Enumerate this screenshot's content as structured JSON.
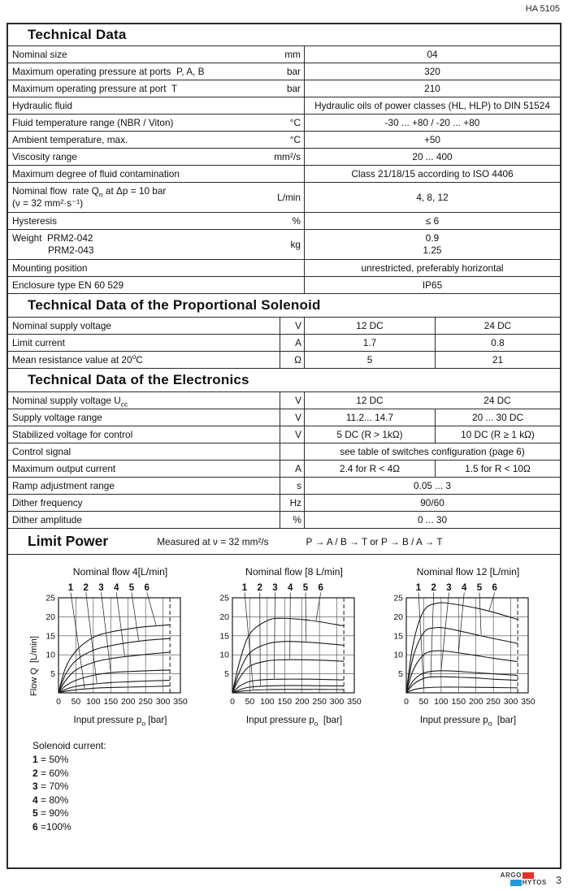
{
  "header": {
    "doc_code": "HA 5105"
  },
  "sections": {
    "technical_data": {
      "title": "Technical Data",
      "rows": [
        {
          "label": "Nominal size",
          "unit": "mm",
          "value": "04"
        },
        {
          "label": "Maximum operating pressure at ports  P, A, B",
          "unit": "bar",
          "value": "320"
        },
        {
          "label": "Maximum operating pressure at port  T",
          "unit": "bar",
          "value": "210"
        },
        {
          "label": "Hydraulic fluid",
          "unit": "",
          "value": "Hydraulic oils of power classes (HL, HLP) to DIN 51524"
        },
        {
          "label": "Fluid temperature range (NBR / Viton)",
          "unit": "°C",
          "value": "-30 ... +80 / -20 ... +80"
        },
        {
          "label": "Ambient temperature, max.",
          "unit": "°C",
          "value": "+50"
        },
        {
          "label": "Viscosity range",
          "unit": "mm²/s",
          "value": "20 ... 400"
        },
        {
          "label": "Maximum degree of fluid contamination",
          "unit": "",
          "value": "Class 21/18/15 according to ISO 4406"
        },
        {
          "label_pre": "Nominal flow  rate Q",
          "label_sub": "n",
          "label_post": " at Δp = 10 bar",
          "label_line2": "(ν = 32 mm²·s⁻¹)",
          "unit": "L/min",
          "value": "4, 8, 12"
        },
        {
          "label": "Hysteresis",
          "unit": "%",
          "value": "≤ 6"
        },
        {
          "label": "Weight  PRM2-042",
          "label_line2": "PRM2-043",
          "unit": "kg",
          "value": "0.9",
          "value2": "1.25"
        },
        {
          "label": "Mounting position",
          "unit": "",
          "value": "unrestricted, preferably horizontal"
        },
        {
          "label": "Enclosure type EN 60 529",
          "unit": "",
          "value": "IP65"
        }
      ]
    },
    "solenoid": {
      "title": "Technical Data of the Proportional Solenoid",
      "rows": [
        {
          "label": "Nominal supply voltage",
          "unit": "V",
          "v1": "12 DC",
          "v2": "24 DC"
        },
        {
          "label": "Limit current",
          "unit": "A",
          "v1": "1.7",
          "v2": "0.8"
        },
        {
          "label_pre": "Mean resistance value at 20",
          "label_sup": "o",
          "label_post": "C",
          "unit": "Ω",
          "v1": "5",
          "v2": "21"
        }
      ]
    },
    "electronics": {
      "title": "Technical Data of the Electronics",
      "rows": [
        {
          "label_pre": "Nominal supply voltage U",
          "label_sub": "cc",
          "unit": "V",
          "v1": "12 DC",
          "v2": "24 DC"
        },
        {
          "label": "Supply voltage range",
          "unit": "V",
          "v1": "11.2... 14.7",
          "v2": "20 ... 30 DC"
        },
        {
          "label": "Stabilized voltage for control",
          "unit": "V",
          "v1": "5 DC (R > 1kΩ)",
          "v2": "10 DC (R ≥ 1 kΩ)"
        },
        {
          "label": "Control signal",
          "unit": "",
          "value": "see table of switches configuration (page 6)"
        },
        {
          "label": "Maximum output current",
          "unit": "A",
          "v1": "2.4 for R < 4Ω",
          "v2": "1.5 for R < 10Ω"
        },
        {
          "label": "Ramp adjustment range",
          "unit": "s",
          "value": "0.05 ... 3"
        },
        {
          "label": "Dither frequency",
          "unit": "Hz",
          "value": "90/60"
        },
        {
          "label": "Dither amplitude",
          "unit": "%",
          "value": "0 ... 30"
        }
      ]
    },
    "limit_power": {
      "title": "Limit Power",
      "note1": "Measured at ν = 32 mm²/s",
      "note2": "P → A / B → T or P → B / A → T"
    }
  },
  "legend": {
    "title": "Solenoid current:",
    "items": [
      {
        "n": "1",
        "rest": " = 50%"
      },
      {
        "n": "2",
        "rest": " = 60%"
      },
      {
        "n": "3",
        "rest": " = 70%"
      },
      {
        "n": "4",
        "rest": " = 80%"
      },
      {
        "n": "5",
        "rest": " = 90%"
      },
      {
        "n": "6",
        "rest": " =100%"
      }
    ]
  },
  "chart_data": [
    {
      "type": "line",
      "title": "Nominal flow 4[L/min]",
      "ylabel": "Flow Q  [L/min]",
      "xlabel_pre": "Input pressure p",
      "xlabel_sub": "o",
      "xlabel_post": " [bar]",
      "xlim": [
        0,
        350
      ],
      "ylim": [
        0,
        25
      ],
      "xticks": [
        0,
        50,
        100,
        150,
        200,
        250,
        300,
        350
      ],
      "yticks": [
        5,
        10,
        15,
        20,
        25
      ],
      "x_step": 50,
      "y_step": 5,
      "grid": true,
      "dashed_x": 320,
      "curve_labels": [
        "1",
        "2",
        "3",
        "4",
        "5",
        "6"
      ],
      "callout_x": [
        75,
        110,
        150,
        190,
        230,
        280
      ],
      "series": [
        {
          "name": "1",
          "points": [
            [
              0,
              0
            ],
            [
              20,
              0.4
            ],
            [
              50,
              0.8
            ],
            [
              100,
              1.2
            ],
            [
              150,
              1.4
            ],
            [
              200,
              1.5
            ],
            [
              250,
              1.6
            ],
            [
              320,
              1.8
            ]
          ]
        },
        {
          "name": "2",
          "points": [
            [
              0,
              0
            ],
            [
              20,
              0.9
            ],
            [
              50,
              1.7
            ],
            [
              100,
              2.3
            ],
            [
              150,
              2.7
            ],
            [
              200,
              2.9
            ],
            [
              250,
              3.1
            ],
            [
              320,
              3.3
            ]
          ]
        },
        {
          "name": "3",
          "points": [
            [
              0,
              0
            ],
            [
              20,
              1.8
            ],
            [
              50,
              3.3
            ],
            [
              100,
              4.6
            ],
            [
              150,
              5.3
            ],
            [
              200,
              5.6
            ],
            [
              250,
              5.8
            ],
            [
              320,
              6.0
            ]
          ]
        },
        {
          "name": "4",
          "points": [
            [
              0,
              0
            ],
            [
              20,
              3.2
            ],
            [
              50,
              6.0
            ],
            [
              100,
              8.0
            ],
            [
              150,
              9.0
            ],
            [
              200,
              9.6
            ],
            [
              250,
              10.1
            ],
            [
              320,
              10.7
            ]
          ]
        },
        {
          "name": "5",
          "points": [
            [
              0,
              0
            ],
            [
              20,
              4.8
            ],
            [
              50,
              8.5
            ],
            [
              100,
              11.2
            ],
            [
              150,
              12.4
            ],
            [
              200,
              13.2
            ],
            [
              250,
              13.8
            ],
            [
              320,
              14.3
            ]
          ]
        },
        {
          "name": "6",
          "points": [
            [
              0,
              0
            ],
            [
              20,
              6.5
            ],
            [
              50,
              11.0
            ],
            [
              100,
              14.6
            ],
            [
              150,
              16.0
            ],
            [
              200,
              16.8
            ],
            [
              250,
              17.4
            ],
            [
              320,
              17.9
            ]
          ]
        }
      ]
    },
    {
      "type": "line",
      "title": "Nominal flow [8 L/min]",
      "xlabel_pre": "Input pressure p",
      "xlabel_sub": "o",
      "xlabel_post": "  [bar]",
      "xlim": [
        0,
        350
      ],
      "ylim": [
        0,
        25
      ],
      "xticks": [
        0,
        50,
        100,
        150,
        200,
        250,
        300,
        350
      ],
      "yticks": [
        5,
        10,
        15,
        20,
        25
      ],
      "x_step": 50,
      "y_step": 5,
      "grid": true,
      "dashed_x": 320,
      "curve_labels": [
        "1",
        "2",
        "3",
        "4",
        "5",
        "6"
      ],
      "callout_x": [
        60,
        80,
        120,
        165,
        212,
        240
      ],
      "series": [
        {
          "name": "1",
          "points": [
            [
              0,
              0
            ],
            [
              20,
              0.35
            ],
            [
              50,
              0.65
            ],
            [
              100,
              0.85
            ],
            [
              150,
              0.9
            ],
            [
              200,
              0.9
            ],
            [
              250,
              0.9
            ],
            [
              320,
              0.85
            ]
          ]
        },
        {
          "name": "2",
          "points": [
            [
              0,
              0
            ],
            [
              20,
              0.8
            ],
            [
              50,
              1.5
            ],
            [
              100,
              1.8
            ],
            [
              150,
              1.9
            ],
            [
              200,
              1.9
            ],
            [
              250,
              1.85
            ],
            [
              320,
              1.8
            ]
          ]
        },
        {
          "name": "3",
          "points": [
            [
              0,
              0
            ],
            [
              20,
              1.7
            ],
            [
              50,
              3.0
            ],
            [
              100,
              3.5
            ],
            [
              150,
              3.6
            ],
            [
              200,
              3.6
            ],
            [
              250,
              3.55
            ],
            [
              320,
              3.4
            ]
          ]
        },
        {
          "name": "4",
          "points": [
            [
              0,
              0
            ],
            [
              20,
              3.8
            ],
            [
              50,
              7.0
            ],
            [
              100,
              8.4
            ],
            [
              150,
              8.7
            ],
            [
              200,
              8.7
            ],
            [
              250,
              8.6
            ],
            [
              320,
              8.3
            ]
          ]
        },
        {
          "name": "5",
          "points": [
            [
              0,
              0
            ],
            [
              20,
              5.5
            ],
            [
              50,
              10.5
            ],
            [
              100,
              12.9
            ],
            [
              150,
              13.5
            ],
            [
              200,
              13.4
            ],
            [
              250,
              13.1
            ],
            [
              320,
              12.5
            ]
          ]
        },
        {
          "name": "6",
          "points": [
            [
              0,
              0
            ],
            [
              20,
              8.0
            ],
            [
              50,
              15.5
            ],
            [
              100,
              19.0
            ],
            [
              140,
              19.6
            ],
            [
              200,
              19.3
            ],
            [
              250,
              18.7
            ],
            [
              320,
              17.6
            ]
          ]
        }
      ]
    },
    {
      "type": "line",
      "title": "Nominal flow 12 [L/min]",
      "xlabel_pre": "Input pressure p",
      "xlabel_sub": "o",
      "xlabel_post": "  [bar]",
      "xlim": [
        0,
        350
      ],
      "ylim": [
        0,
        25
      ],
      "xticks": [
        0,
        50,
        100,
        150,
        200,
        250,
        300,
        350
      ],
      "yticks": [
        5,
        10,
        15,
        20,
        25
      ],
      "x_step": 50,
      "y_step": 5,
      "grid": true,
      "dashed_x": 320,
      "curve_labels": [
        "1",
        "2",
        "3",
        "4",
        "5",
        "6"
      ],
      "callout_x": [
        50,
        70,
        100,
        150,
        215,
        238
      ],
      "series": [
        {
          "name": "1",
          "points": [
            [
              0,
              0
            ],
            [
              20,
              0.8
            ],
            [
              50,
              1.3
            ],
            [
              100,
              1.5
            ],
            [
              150,
              1.5
            ],
            [
              200,
              1.45
            ],
            [
              250,
              1.4
            ],
            [
              320,
              1.3
            ]
          ]
        },
        {
          "name": "2",
          "points": [
            [
              0,
              0
            ],
            [
              20,
              2.2
            ],
            [
              50,
              3.8
            ],
            [
              80,
              4.2
            ],
            [
              120,
              4.2
            ],
            [
              200,
              3.9
            ],
            [
              250,
              3.6
            ],
            [
              320,
              3.3
            ]
          ]
        },
        {
          "name": "3",
          "points": [
            [
              0,
              0
            ],
            [
              20,
              3.2
            ],
            [
              50,
              5.2
            ],
            [
              90,
              5.8
            ],
            [
              140,
              5.7
            ],
            [
              200,
              5.3
            ],
            [
              250,
              5.0
            ],
            [
              320,
              4.6
            ]
          ]
        },
        {
          "name": "4",
          "points": [
            [
              0,
              0
            ],
            [
              20,
              6.0
            ],
            [
              50,
              10.0
            ],
            [
              80,
              11.0
            ],
            [
              120,
              10.9
            ],
            [
              200,
              9.8
            ],
            [
              250,
              9.1
            ],
            [
              320,
              8.2
            ]
          ]
        },
        {
          "name": "5",
          "points": [
            [
              0,
              0
            ],
            [
              20,
              9.5
            ],
            [
              50,
              15.8
            ],
            [
              80,
              17.1
            ],
            [
              120,
              16.9
            ],
            [
              200,
              15.3
            ],
            [
              250,
              14.3
            ],
            [
              320,
              13.0
            ]
          ]
        },
        {
          "name": "6",
          "points": [
            [
              0,
              0
            ],
            [
              20,
              13.0
            ],
            [
              50,
              21.5
            ],
            [
              90,
              23.6
            ],
            [
              140,
              23.3
            ],
            [
              200,
              22.3
            ],
            [
              250,
              21.2
            ],
            [
              320,
              19.3
            ]
          ]
        }
      ]
    }
  ],
  "footer": {
    "page_number": "3",
    "logo": {
      "line1": "ARGO",
      "line2": "HYTOS",
      "red": "#e53228",
      "blue": "#1e9bd7"
    }
  }
}
